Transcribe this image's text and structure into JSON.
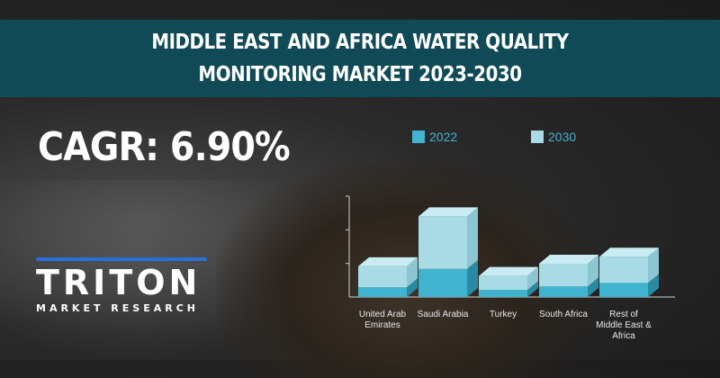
{
  "header": {
    "title": "MIDDLE EAST AND AFRICA WATER QUALITY MONITORING MARKET 2023-2030"
  },
  "cagr": {
    "text": "CAGR: 6.90%"
  },
  "logo": {
    "name": "TRITON",
    "tagline": "MARKET RESEARCH",
    "accent": "#2b6fd6"
  },
  "colors": {
    "series_2022_front": "#3fb3d0",
    "series_2022_side": "#2b8aa3",
    "series_2030_front": "#a9dbe6",
    "series_2030_side": "#8cc6d3",
    "top": "#c9ecf3"
  },
  "chart_data": {
    "type": "bar",
    "stacked": true,
    "categories": [
      [
        "United Arab",
        "Emirates"
      ],
      [
        "Saudi Arabia"
      ],
      [
        "Turkey"
      ],
      [
        "South Africa"
      ],
      [
        "Rest of",
        "Middle East &",
        "Africa"
      ]
    ],
    "series": [
      {
        "name": "2022",
        "values": [
          11,
          32,
          8,
          12,
          16
        ]
      },
      {
        "name": "2030",
        "values": [
          24,
          60,
          16,
          26,
          30
        ]
      }
    ],
    "legend": {
      "position": "top"
    },
    "ylim": [
      0,
      115
    ]
  }
}
